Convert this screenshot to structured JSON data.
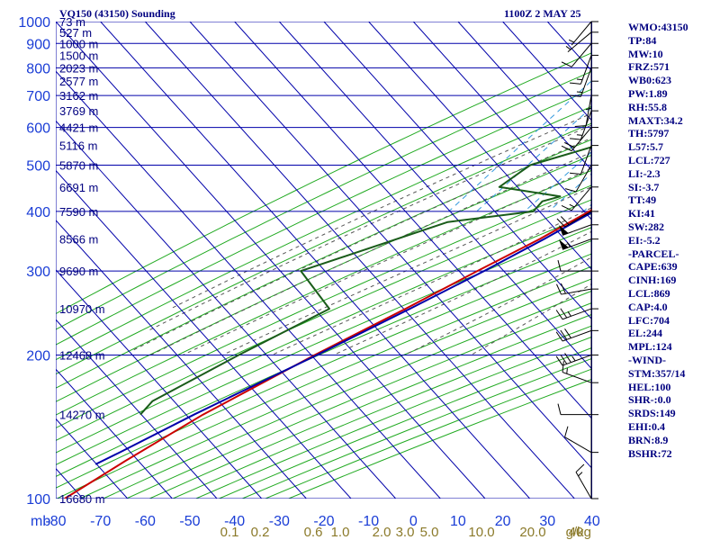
{
  "header": {
    "title": "VQ150 (43150) Sounding",
    "timestamp": "1100Z  2 MAY 25"
  },
  "indices": [
    "WMO:43150",
    "TP:84",
    "MW:10",
    "FRZ:571",
    "WB0:623",
    "PW:1.89",
    "RH:55.8",
    "MAXT:34.2",
    "TH:5797",
    "L57:5.7",
    "LCL:727",
    "LI:-2.3",
    "SI:-3.7",
    "TT:49",
    "KI:41",
    "SW:282",
    "EI:-5.2",
    "-PARCEL-",
    "CAPE:639",
    "CINH:169",
    "LCL:869",
    "CAP:4.0",
    "LFC:704",
    "EL:244",
    "MPL:124",
    "-WIND-",
    "STM:357/14",
    "HEL:100",
    "SHR-:0.0",
    "SRDS:149",
    "EHI:0.4",
    "BRN:8.9",
    "BSHR:72"
  ],
  "colors": {
    "grid": "#0000aa",
    "dry_adiabat": "#22aa22",
    "moist_adiabat": "#555555",
    "mixing_ratio": "#3399dd",
    "temperature": "#cc0000",
    "dewpoint": "#1a5c1a",
    "parcel": "#0000aa",
    "barb": "#000000",
    "labels": "#1a3dd6",
    "mixing_labels": "#8b7a2a"
  },
  "chart_data": {
    "type": "skew-t",
    "pressure_unit_label": "mb",
    "p_range": [
      1000,
      100
    ],
    "t_range": [
      -80,
      40
    ],
    "pressure_ticks": [
      {
        "p": 100,
        "label": "100"
      },
      {
        "p": 200,
        "label": "200"
      },
      {
        "p": 300,
        "label": "300"
      },
      {
        "p": 400,
        "label": "400"
      },
      {
        "p": 500,
        "label": "500"
      },
      {
        "p": 600,
        "label": "600"
      },
      {
        "p": 700,
        "label": "700"
      },
      {
        "p": 800,
        "label": "800"
      },
      {
        "p": 900,
        "label": "900"
      },
      {
        "p": 1000,
        "label": "1000"
      }
    ],
    "temperature_ticks": [
      {
        "t": -80,
        "label": "-80"
      },
      {
        "t": -70,
        "label": "-70"
      },
      {
        "t": -60,
        "label": "-60"
      },
      {
        "t": -50,
        "label": "-50"
      },
      {
        "t": -40,
        "label": "-40"
      },
      {
        "t": -30,
        "label": "-30"
      },
      {
        "t": -20,
        "label": "-20"
      },
      {
        "t": -10,
        "label": "-10"
      },
      {
        "t": 0,
        "label": "0"
      },
      {
        "t": 10,
        "label": "10"
      },
      {
        "t": 20,
        "label": "20"
      },
      {
        "t": 30,
        "label": "30"
      },
      {
        "t": 40,
        "label": "40"
      }
    ],
    "mandatory_heights": [
      {
        "p": 100,
        "label": "16680 m"
      },
      {
        "p": 150,
        "label": "14270 m"
      },
      {
        "p": 200,
        "label": "12468 m"
      },
      {
        "p": 250,
        "label": "10970 m"
      },
      {
        "p": 300,
        "label": "9690 m"
      },
      {
        "p": 350,
        "label": "8566 m"
      },
      {
        "p": 400,
        "label": "7590 m"
      },
      {
        "p": 450,
        "label": "6691 m"
      },
      {
        "p": 500,
        "label": "5870 m"
      },
      {
        "p": 550,
        "label": "5116 m"
      },
      {
        "p": 600,
        "label": "4421 m"
      },
      {
        "p": 650,
        "label": "3769 m"
      },
      {
        "p": 700,
        "label": "3162 m"
      },
      {
        "p": 750,
        "label": "2577 m"
      },
      {
        "p": 800,
        "label": "2023 m"
      },
      {
        "p": 850,
        "label": "1500 m"
      },
      {
        "p": 900,
        "label": "1000 m"
      },
      {
        "p": 950,
        "label": "527 m"
      },
      {
        "p": 1000,
        "label": "73 m"
      }
    ],
    "mixing_ratio_labels": [
      {
        "w": 0.1,
        "label": "0.1"
      },
      {
        "w": 0.2,
        "label": "0.2"
      },
      {
        "w": 0.6,
        "label": "0.6"
      },
      {
        "w": 1.0,
        "label": "1.0"
      },
      {
        "w": 2.0,
        "label": "2.0"
      },
      {
        "w": 3.0,
        "label": "3.0"
      },
      {
        "w": 5.0,
        "label": "5.0"
      },
      {
        "w": 10.0,
        "label": "10.0"
      },
      {
        "w": 20.0,
        "label": "20.0"
      },
      {
        "w": 40.0,
        "label": "40"
      }
    ],
    "mixing_ratio_unit": "g/kg",
    "series": [
      {
        "key": "temperature",
        "points": [
          [
            1000,
            30.5
          ],
          [
            950,
            26.0
          ],
          [
            925,
            23.5
          ],
          [
            900,
            21.0
          ],
          [
            850,
            18.5
          ],
          [
            800,
            19.5
          ],
          [
            750,
            14.0
          ],
          [
            700,
            9.5
          ],
          [
            650,
            5.0
          ],
          [
            600,
            -1.0
          ],
          [
            550,
            -4.0
          ],
          [
            500,
            -8.5
          ],
          [
            450,
            -13.0
          ],
          [
            400,
            -18.5
          ],
          [
            350,
            -24.0
          ],
          [
            300,
            -31.5
          ],
          [
            250,
            -40.0
          ],
          [
            200,
            -51.0
          ],
          [
            150,
            -64.0
          ],
          [
            120,
            -72.0
          ],
          [
            100,
            -78.0
          ]
        ]
      },
      {
        "key": "dewpoint",
        "points": [
          [
            1000,
            10.0
          ],
          [
            990,
            21.5
          ],
          [
            950,
            16.0
          ],
          [
            925,
            17.0
          ],
          [
            900,
            16.0
          ],
          [
            850,
            12.0
          ],
          [
            800,
            7.0
          ],
          [
            750,
            -1.0
          ],
          [
            700,
            -5.0
          ],
          [
            650,
            -12.0
          ],
          [
            620,
            -19.0
          ],
          [
            600,
            -20.0
          ],
          [
            590,
            -7.0
          ],
          [
            580,
            -15.0
          ],
          [
            550,
            -30.0
          ],
          [
            500,
            -41.0
          ],
          [
            480,
            -42.0
          ],
          [
            450,
            -43.5
          ],
          [
            430,
            -28.0
          ],
          [
            420,
            -31.0
          ],
          [
            400,
            -31.0
          ],
          [
            380,
            -48.0
          ],
          [
            300,
            -71.0
          ],
          [
            250,
            -57.0
          ],
          [
            200,
            -68.0
          ],
          [
            160,
            -78.0
          ],
          [
            150,
            -78.0
          ]
        ]
      },
      {
        "key": "parcel",
        "points": [
          [
            1000,
            30.0
          ],
          [
            950,
            25.0
          ],
          [
            900,
            20.5
          ],
          [
            869,
            17.7
          ],
          [
            800,
            14.0
          ],
          [
            750,
            11.5
          ],
          [
            700,
            8.5
          ],
          [
            650,
            4.5
          ],
          [
            600,
            0.5
          ],
          [
            550,
            -3.0
          ],
          [
            500,
            -7.5
          ],
          [
            450,
            -12.0
          ],
          [
            400,
            -17.5
          ],
          [
            350,
            -23.0
          ],
          [
            300,
            -30.0
          ],
          [
            250,
            -39.0
          ],
          [
            200,
            -50.5
          ],
          [
            150,
            -66.0
          ],
          [
            125,
            -75.0
          ],
          [
            118,
            -78.0
          ]
        ]
      }
    ],
    "wind_barbs": [
      {
        "p": 100,
        "dir": 330,
        "spd": 15
      },
      {
        "p": 125,
        "dir": 300,
        "spd": 10
      },
      {
        "p": 150,
        "dir": 270,
        "spd": 10
      },
      {
        "p": 175,
        "dir": 290,
        "spd": 15
      },
      {
        "p": 200,
        "dir": 250,
        "spd": 35
      },
      {
        "p": 225,
        "dir": 250,
        "spd": 30
      },
      {
        "p": 250,
        "dir": 250,
        "spd": 25
      },
      {
        "p": 275,
        "dir": 260,
        "spd": 20
      },
      {
        "p": 300,
        "dir": 270,
        "spd": 10
      },
      {
        "p": 350,
        "dir": 250,
        "spd": 55
      },
      {
        "p": 375,
        "dir": 250,
        "spd": 50
      },
      {
        "p": 400,
        "dir": 240,
        "spd": 20
      },
      {
        "p": 450,
        "dir": 220,
        "spd": 15
      },
      {
        "p": 500,
        "dir": 210,
        "spd": 10
      },
      {
        "p": 550,
        "dir": 200,
        "spd": 10
      },
      {
        "p": 600,
        "dir": 220,
        "spd": 20
      },
      {
        "p": 650,
        "dir": 200,
        "spd": 15
      },
      {
        "p": 700,
        "dir": 190,
        "spd": 10
      },
      {
        "p": 750,
        "dir": 180,
        "spd": 5
      },
      {
        "p": 800,
        "dir": 200,
        "spd": 15
      },
      {
        "p": 850,
        "dir": 200,
        "spd": 15
      },
      {
        "p": 900,
        "dir": 220,
        "spd": 10
      },
      {
        "p": 950,
        "dir": 230,
        "spd": 5
      },
      {
        "p": 1000,
        "dir": 220,
        "spd": 5
      }
    ]
  }
}
